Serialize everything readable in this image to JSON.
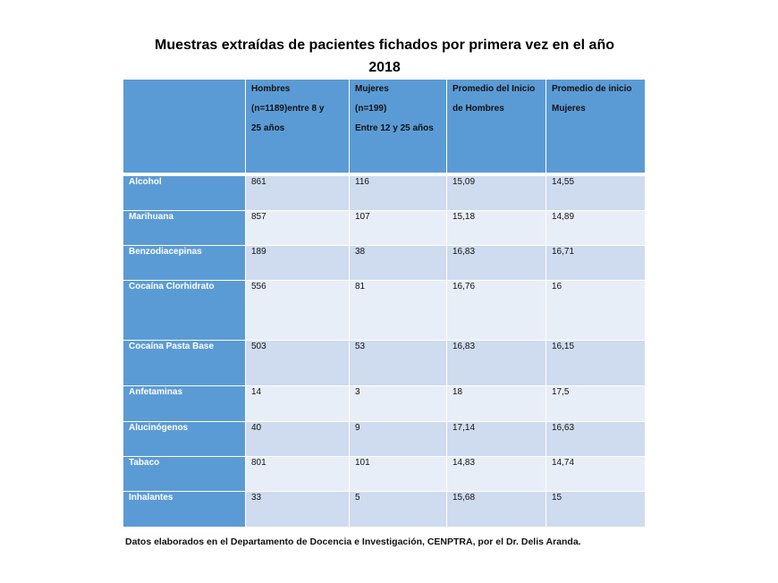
{
  "title": {
    "line1": "Muestras extraídas de pacientes fichados por primera vez en el año",
    "line2": "2018"
  },
  "table": {
    "headers": {
      "col0": "",
      "col1_line1": "Hombres",
      "col1_line2": "(n=1189)entre    8    y",
      "col1_line3": "25 años",
      "col2_line1": "Mujeres",
      "col2_line2": "(n=199)",
      "col2_line3": "Entre 12 y 25 años",
      "col3_line1": "Promedio del Inicio",
      "col3_line2": "de Hombres",
      "col4_line1": "Promedio  de  inicio",
      "col4_line2": "Mujeres"
    },
    "rows": [
      {
        "substance": "Alcohol",
        "hombres": "861",
        "mujeres": "116",
        "prom_h": "15,09",
        "prom_m": "14,55"
      },
      {
        "substance": "Marihuana",
        "hombres": "857",
        "mujeres": "107",
        "prom_h": "15,18",
        "prom_m": "14,89"
      },
      {
        "substance": "Benzodiacepinas",
        "hombres": "189",
        "mujeres": "38",
        "prom_h": "16,83",
        "prom_m": "16,71"
      },
      {
        "substance": "Cocaína  Clorhidrato",
        "hombres": "556",
        "mujeres": "81",
        "prom_h": "16,76",
        "prom_m": "16"
      },
      {
        "substance": "Cocaína  Pasta Base",
        "hombres": "503",
        "mujeres": "53",
        "prom_h": "16,83",
        "prom_m": "16,15"
      },
      {
        "substance": "Anfetaminas",
        "hombres": "14",
        "mujeres": "3",
        "prom_h": "18",
        "prom_m": "17,5"
      },
      {
        "substance": "Alucinógenos",
        "hombres": "40",
        "mujeres": "9",
        "prom_h": "17,14",
        "prom_m": "16,63"
      },
      {
        "substance": "Tabaco",
        "hombres": "801",
        "mujeres": "101",
        "prom_h": "14,83",
        "prom_m": "14,74"
      },
      {
        "substance": "Inhalantes",
        "hombres": "33",
        "mujeres": "5",
        "prom_h": "15,68",
        "prom_m": "15"
      }
    ]
  },
  "footer": "Datos elaborados en el Departamento de Docencia e Investigación, CENPTRA, por el Dr. Delis Aranda.",
  "colors": {
    "header_blue": "#5b9bd5",
    "row_dark": "#cfdbee",
    "row_light": "#e8eef7"
  }
}
